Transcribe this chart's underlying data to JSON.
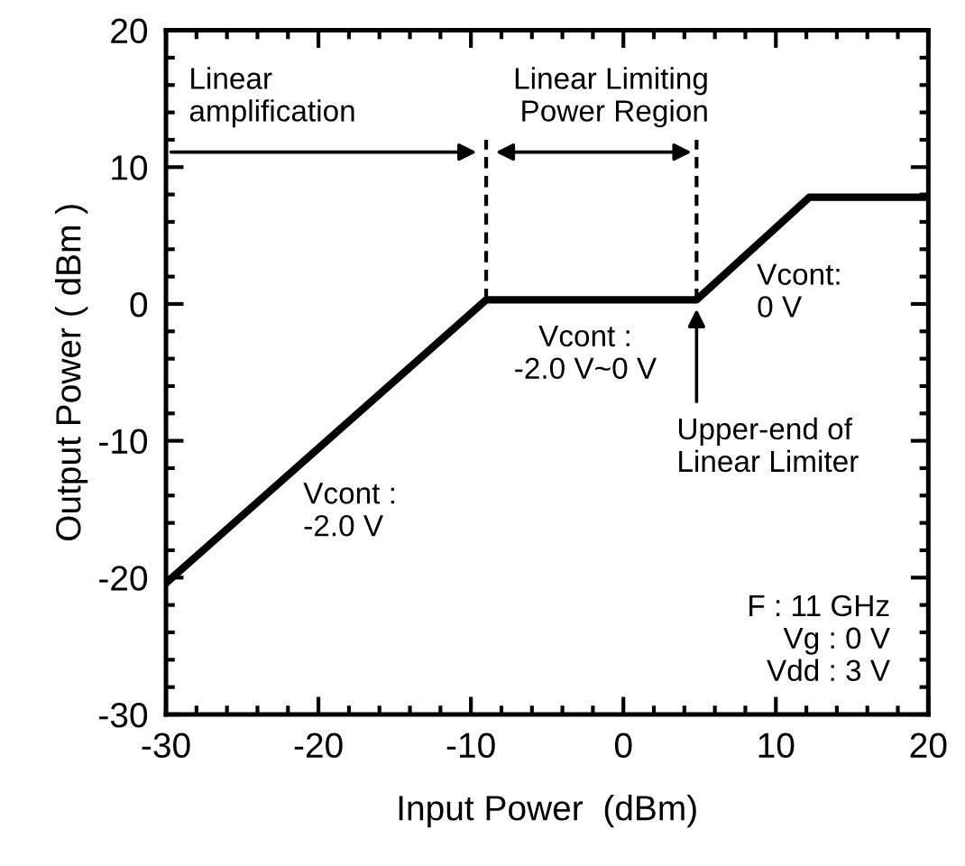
{
  "chart_data": {
    "type": "line",
    "xlabel": "Input Power  (dBm)",
    "ylabel": "Output Power ( dBm )",
    "x": [
      -30,
      -9,
      4.8,
      12.2,
      20
    ],
    "series": [
      {
        "color": "#000000",
        "values": [
          -20.4,
          0.3,
          0.3,
          7.8,
          7.8
        ]
      }
    ],
    "xlim": [
      -30,
      20
    ],
    "ylim": [
      -30,
      20
    ],
    "xticks": [
      -30,
      -20,
      -10,
      0,
      10,
      20
    ],
    "yticks": [
      -30,
      -20,
      -10,
      0,
      10,
      20
    ],
    "grid": false,
    "legend": false,
    "marker": "none",
    "line_style": "solid",
    "ref_lines": [
      {
        "axis": "x",
        "value": -9,
        "line_style": "dashed",
        "color": "#000000"
      },
      {
        "axis": "x",
        "value": 4.8,
        "line_style": "dashed",
        "color": "#000000"
      }
    ],
    "annotations": [
      "Linear\namplification",
      "Linear Limiting\nPower Region",
      {
        "text": "Upper-end of\nLinear Limiter",
        "x": 4.8,
        "y": 0
      },
      "Vcont :\n-2.0 V",
      "Vcont :\n-2.0 V~0 V",
      "Vcont:\n0 V",
      "F : 11 GHz\nVg : 0 V\nVdd : 3 V"
    ]
  }
}
